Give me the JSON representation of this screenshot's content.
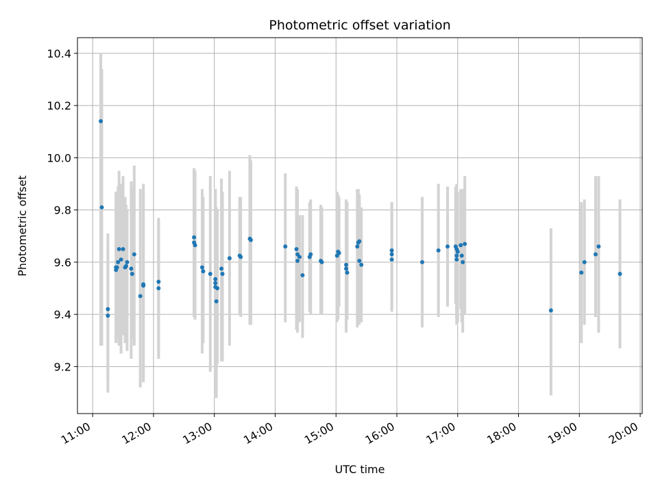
{
  "chart_data": {
    "type": "scatter",
    "title": "Photometric offset variation",
    "xlabel": "UTC time",
    "ylabel": "Photometric offset",
    "x_axis": "time (hours UTC)",
    "xlim": [
      "10:45",
      "20:02"
    ],
    "ylim": [
      9.02,
      10.46
    ],
    "xticks": [
      "11:00",
      "12:00",
      "13:00",
      "14:00",
      "15:00",
      "16:00",
      "17:00",
      "18:00",
      "19:00",
      "20:00"
    ],
    "yticks": [
      9.2,
      9.4,
      9.6,
      9.8,
      10.0,
      10.2,
      10.4
    ],
    "grid": true,
    "colors": {
      "points": "#1f77b4",
      "errorbars": "#d3d3d3",
      "grid": "#b0b0b0"
    },
    "series": [
      {
        "x": [
          "11:08",
          "11:09",
          "11:15",
          "11:15",
          "11:23",
          "11:23",
          "11:24",
          "11:25",
          "11:26",
          "11:28",
          "11:30",
          "11:32",
          "11:33",
          "11:34",
          "11:38",
          "11:39",
          "11:41",
          "11:47",
          "11:50",
          "11:50",
          "12:05",
          "12:05",
          "12:40",
          "12:40",
          "12:41",
          "12:48",
          "12:49",
          "12:56",
          "13:01",
          "13:01",
          "13:01",
          "13:02",
          "13:03",
          "13:07",
          "13:08",
          "13:15",
          "13:25",
          "13:26",
          "13:35",
          "13:36",
          "14:10",
          "14:21",
          "14:22",
          "14:22",
          "14:24",
          "14:27",
          "14:34",
          "14:35",
          "14:45",
          "14:46",
          "15:01",
          "15:02",
          "15:03",
          "15:10",
          "15:10",
          "15:11",
          "15:21",
          "15:22",
          "15:23",
          "15:23",
          "15:25",
          "15:55",
          "15:55",
          "15:55",
          "16:25",
          "16:41",
          "16:50",
          "16:58",
          "16:59",
          "16:59",
          "16:59",
          "17:00",
          "17:03",
          "17:04",
          "17:05",
          "17:07",
          "18:32",
          "19:02",
          "19:05",
          "19:16",
          "19:19",
          "19:40"
        ],
        "y": [
          10.14,
          9.81,
          9.42,
          9.395,
          9.58,
          9.57,
          9.58,
          9.6,
          9.65,
          9.61,
          9.65,
          9.58,
          9.585,
          9.6,
          9.575,
          9.555,
          9.63,
          9.47,
          9.515,
          9.51,
          9.525,
          9.5,
          9.695,
          9.675,
          9.665,
          9.58,
          9.565,
          9.555,
          9.535,
          9.52,
          9.505,
          9.45,
          9.5,
          9.575,
          9.555,
          9.615,
          9.625,
          9.62,
          9.69,
          9.685,
          9.66,
          9.65,
          9.63,
          9.605,
          9.62,
          9.55,
          9.62,
          9.63,
          9.605,
          9.6,
          9.625,
          9.64,
          9.635,
          9.59,
          9.575,
          9.56,
          9.66,
          9.675,
          9.68,
          9.605,
          9.59,
          9.645,
          9.63,
          9.61,
          9.6,
          9.645,
          9.66,
          9.66,
          9.65,
          9.625,
          9.61,
          9.64,
          9.665,
          9.625,
          9.6,
          9.67,
          9.415,
          9.56,
          9.6,
          9.63,
          9.66,
          9.555
        ],
        "err_low": [
          9.28,
          9.28,
          9.1,
          9.15,
          9.3,
          9.29,
          9.31,
          9.32,
          9.28,
          9.25,
          9.32,
          9.29,
          9.3,
          9.26,
          9.23,
          9.31,
          9.28,
          9.12,
          9.15,
          9.14,
          9.23,
          9.24,
          9.39,
          9.39,
          9.38,
          9.25,
          9.29,
          9.18,
          9.19,
          9.08,
          9.2,
          9.08,
          9.21,
          9.22,
          9.22,
          9.28,
          9.4,
          9.39,
          9.36,
          9.36,
          9.37,
          9.34,
          9.33,
          9.38,
          9.37,
          9.31,
          9.41,
          9.4,
          9.4,
          9.4,
          9.37,
          9.38,
          9.43,
          9.33,
          9.35,
          9.38,
          9.35,
          9.38,
          9.36,
          9.38,
          9.37,
          9.41,
          9.42,
          9.46,
          9.35,
          9.39,
          9.43,
          9.44,
          9.36,
          9.39,
          9.39,
          9.37,
          9.42,
          9.37,
          9.33,
          9.4,
          9.09,
          9.29,
          9.36,
          9.39,
          9.33,
          9.27
        ],
        "err_high": [
          10.4,
          10.34,
          9.71,
          9.63,
          9.87,
          9.86,
          9.84,
          9.89,
          9.95,
          9.9,
          9.93,
          9.85,
          9.82,
          9.8,
          9.91,
          9.89,
          9.97,
          9.88,
          9.9,
          9.88,
          9.76,
          9.77,
          9.96,
          9.96,
          9.95,
          9.88,
          9.85,
          9.93,
          9.88,
          9.88,
          9.86,
          9.81,
          9.8,
          9.92,
          9.87,
          9.95,
          9.85,
          9.85,
          10.01,
          9.99,
          9.94,
          9.89,
          9.88,
          9.84,
          9.78,
          9.78,
          9.83,
          9.84,
          9.82,
          9.81,
          9.87,
          9.86,
          9.85,
          9.84,
          9.81,
          9.83,
          9.88,
          9.88,
          9.86,
          9.84,
          9.81,
          9.83,
          9.83,
          9.82,
          9.85,
          9.9,
          9.89,
          9.89,
          9.9,
          9.86,
          9.86,
          9.87,
          9.88,
          9.85,
          9.88,
          9.93,
          9.73,
          9.83,
          9.84,
          9.93,
          9.93,
          9.84
        ]
      }
    ]
  }
}
